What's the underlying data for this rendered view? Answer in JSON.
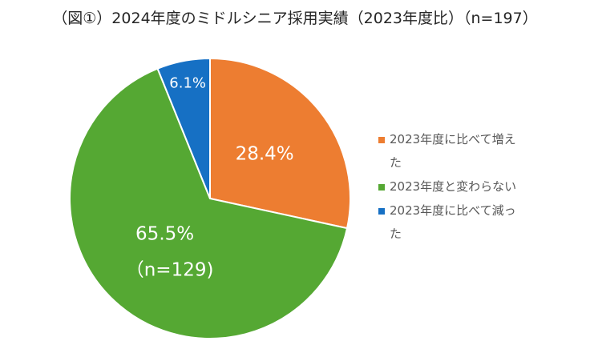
{
  "chart_data": {
    "type": "pie",
    "title": "（図①）2024年度のミドルシニア採用実績（2023年度比）（n=197）",
    "series": [
      {
        "name": "2023年度に比べて増えた",
        "color": "#ED7D31",
        "values": [
          28.4
        ],
        "value_labels": [
          "28.4%"
        ]
      },
      {
        "name": "2023年度と変わらない",
        "color": "#55A833",
        "values": [
          65.5
        ],
        "value_labels": [
          "65.5%"
        ]
      },
      {
        "name": "2023年度に比べて減った",
        "color": "#1670C4",
        "values": [
          6.1
        ],
        "value_labels": [
          "6.1%"
        ]
      }
    ],
    "annotations": [
      "（n=129)"
    ],
    "legend": "right"
  }
}
